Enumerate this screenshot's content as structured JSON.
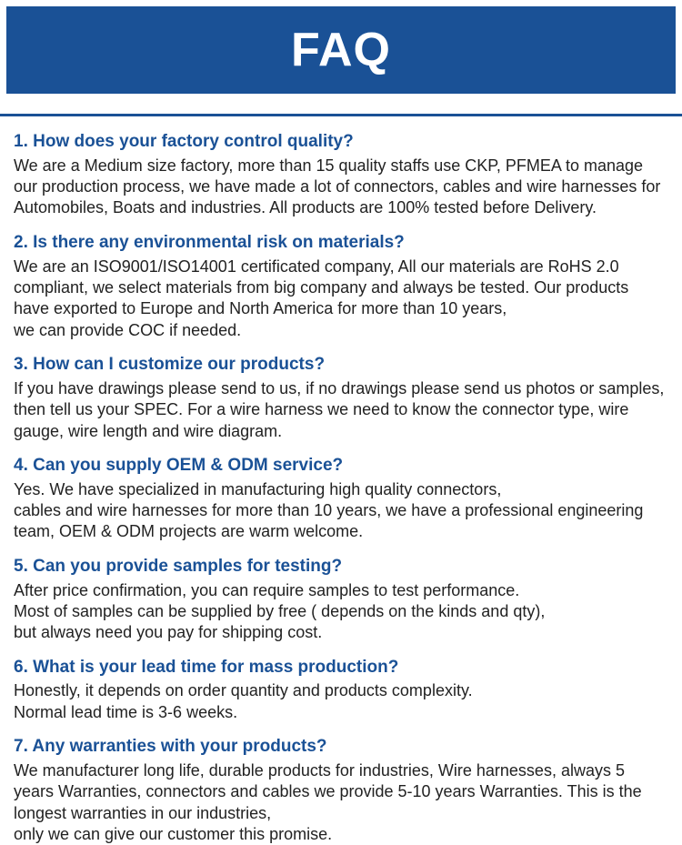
{
  "header": {
    "title": "FAQ"
  },
  "colors": {
    "brand": "#1a5196",
    "text": "#222222",
    "background": "#ffffff"
  },
  "faqs": [
    {
      "q": "1. How does your factory control quality?",
      "a": "We are a Medium size factory, more than 15 quality staffs use CKP, PFMEA to manage our production process, we have made a lot of connectors, cables and wire harnesses for Automobiles, Boats and industries. All products are 100% tested before Delivery."
    },
    {
      "q": "2. Is there any environmental risk on materials?",
      "a": "We are an ISO9001/ISO14001 certificated company, All our materials are RoHS 2.0 compliant, we select materials from big company and always be tested. Our products have exported to Europe and North America for more than 10 years,\nwe can provide COC if needed."
    },
    {
      "q": "3. How can I customize our products?",
      "a": "If you have drawings please send to us, if no drawings please send us photos or samples, then tell us your SPEC. For a wire harness we need to know the connector type, wire gauge, wire length and wire diagram."
    },
    {
      "q": "4. Can you supply OEM & ODM service?",
      "a": "Yes. We have specialized in manufacturing high quality connectors,\ncables and wire harnesses for more than 10 years, we have a professional engineering team, OEM & ODM projects are warm welcome."
    },
    {
      "q": "5. Can you provide samples for testing?",
      "a": "After price confirmation, you can require samples to test performance.\nMost of samples can be supplied by free ( depends on the kinds and qty),\nbut always need you pay for shipping cost."
    },
    {
      "q": "6. What is your lead time for mass production?",
      "a": "Honestly, it depends on order quantity and products complexity.\nNormal lead time is 3-6 weeks."
    },
    {
      "q": "7. Any warranties with your products?",
      "a": "We manufacturer long life, durable products for industries, Wire harnesses, always 5 years Warranties, connectors and cables we provide 5-10 years Warranties. This is the longest warranties in our industries,\nonly we can give our customer this promise."
    }
  ]
}
